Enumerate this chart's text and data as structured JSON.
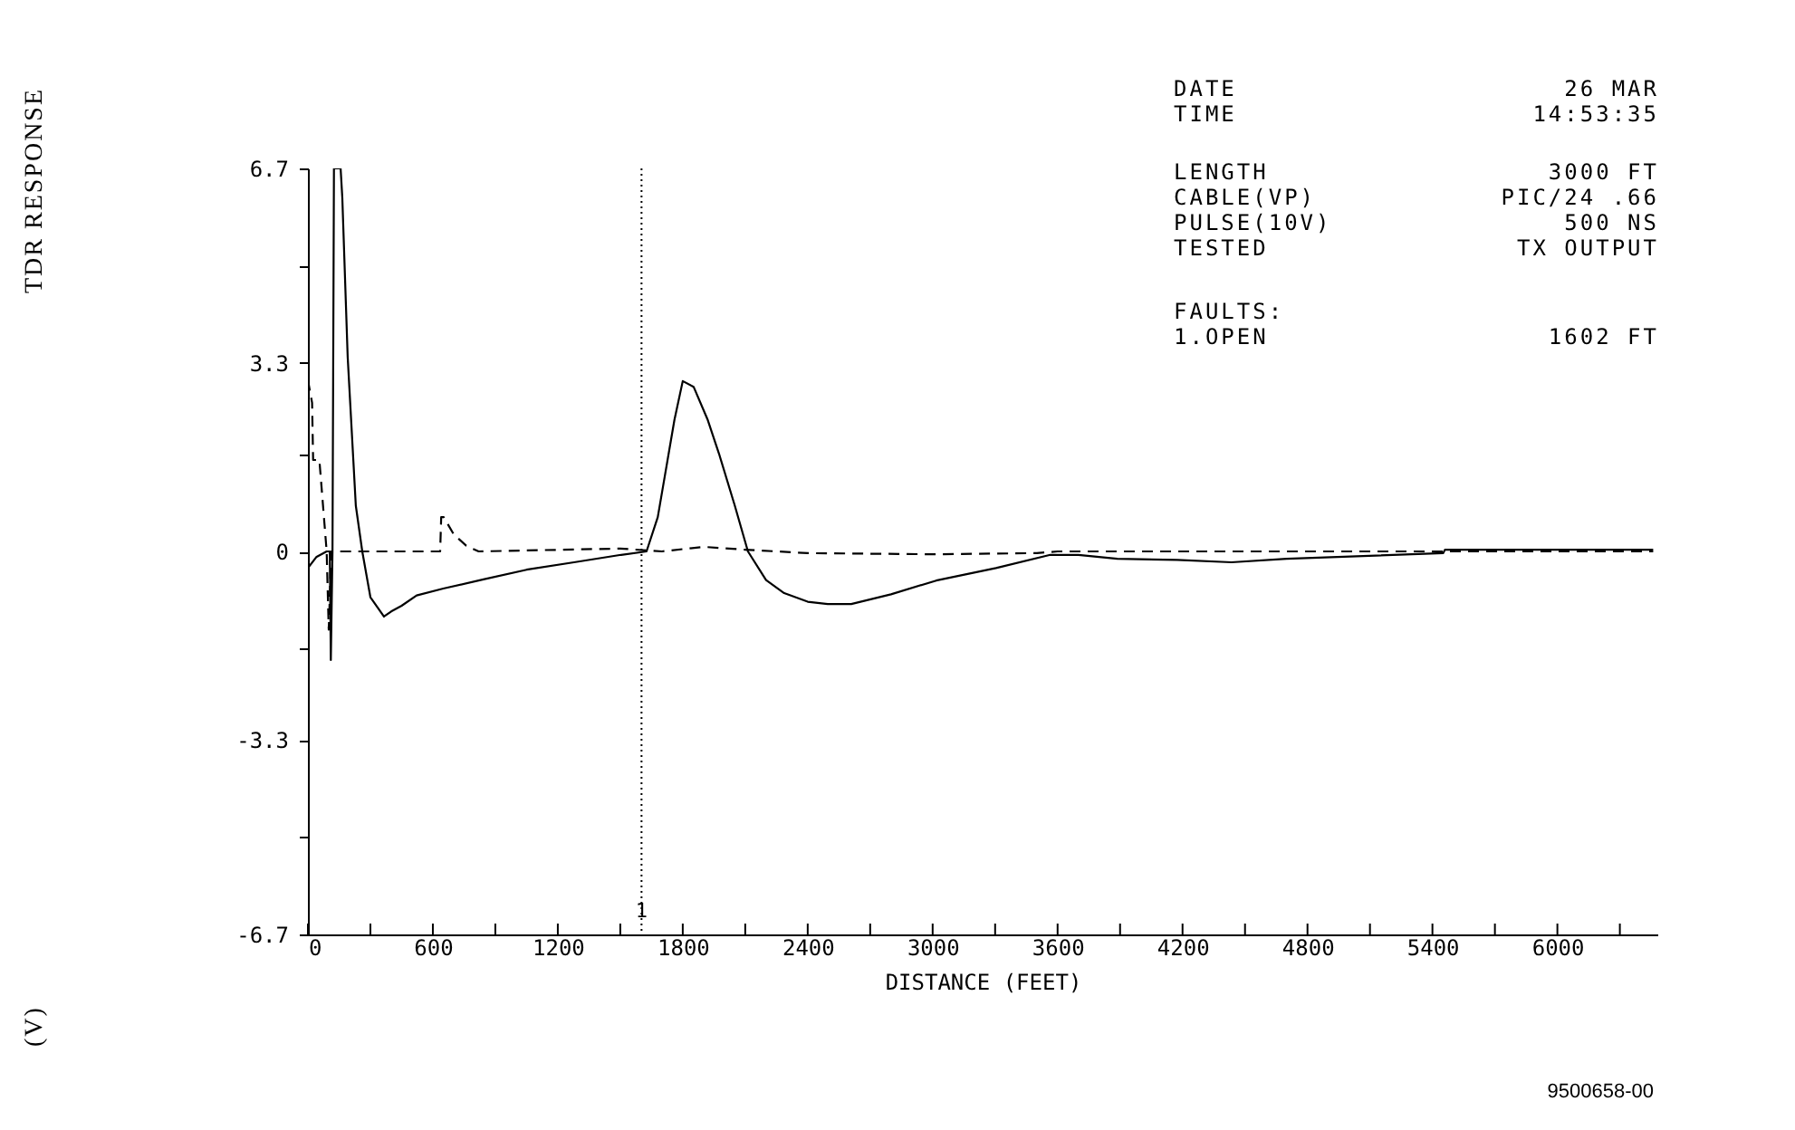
{
  "chart_data": {
    "type": "line",
    "xlabel": "DISTANCE (FEET)",
    "xlim": [
      0,
      6480
    ],
    "ylim": [
      -6.7,
      6.7
    ],
    "xticks": [
      0,
      {
        "value": 300,
        "label": null
      },
      600,
      {
        "value": 900,
        "label": null
      },
      1200,
      {
        "value": 1500,
        "label": null
      },
      1800,
      {
        "value": 2100,
        "label": null
      },
      2400,
      {
        "value": 2700,
        "label": null
      },
      3000,
      {
        "value": 3300,
        "label": null
      },
      3600,
      {
        "value": 3900,
        "label": null
      },
      4200,
      {
        "value": 4500,
        "label": null
      },
      4800,
      {
        "value": 5100,
        "label": null
      },
      5400,
      {
        "value": 5700,
        "label": null
      },
      6000,
      {
        "value": 6300,
        "label": null
      }
    ],
    "yticks": [
      -6.7,
      {
        "value": -5,
        "label": null
      },
      -3.3,
      {
        "value": -1.7,
        "label": null
      },
      0,
      {
        "value": 1.7,
        "label": null
      },
      3.3,
      {
        "value": 5,
        "label": null
      },
      6.7
    ],
    "grid": false,
    "series": [
      {
        "color": "#000000",
        "line_style": "solid",
        "x": [
          0,
          40,
          90,
          105,
          110,
          118,
          125,
          157,
          165,
          191,
          230,
          261,
          300,
          365,
          400,
          450,
          522,
          650,
          843,
          1050,
          1278,
          1504,
          1626,
          1680,
          1713,
          1760,
          1800,
          1852,
          1920,
          1974,
          2050,
          2113,
          2200,
          2287,
          2400,
          2496,
          2609,
          2800,
          3017,
          3304,
          3565,
          3700,
          3887,
          4174,
          4435,
          4700,
          5452,
          5460,
          6460
        ],
        "values": [
          -0.29,
          -0.1,
          0,
          0,
          -1.9,
          0,
          6.7,
          6.7,
          6.2,
          3.4,
          0.8,
          0,
          -0.8,
          -1.14,
          -1.05,
          -0.95,
          -0.77,
          -0.65,
          -0.49,
          -0.32,
          -0.19,
          -0.06,
          0,
          0.6,
          1.3,
          2.3,
          2.98,
          2.88,
          2.3,
          1.71,
          0.8,
          0,
          -0.5,
          -0.73,
          -0.88,
          -0.92,
          -0.92,
          -0.75,
          -0.51,
          -0.29,
          -0.06,
          -0.06,
          -0.13,
          -0.15,
          -0.19,
          -0.13,
          -0.03,
          0.03,
          0.03
        ]
      },
      {
        "color": "#000000",
        "line_style": "dashed",
        "x": [
          0,
          20,
          25,
          55,
          90,
          100,
          112,
          600,
          635,
          640,
          652,
          700,
          760,
          820,
          1500,
          1700,
          1900,
          2100,
          2400,
          3000,
          3500,
          3600,
          6460
        ],
        "values": [
          3.0,
          2.6,
          1.6,
          1.6,
          0,
          -1.37,
          0,
          0,
          0,
          0.6,
          0.6,
          0.3,
          0.1,
          0,
          0.05,
          0,
          0.08,
          0.03,
          -0.03,
          -0.05,
          -0.03,
          0,
          0
        ]
      }
    ],
    "ref_lines": [
      {
        "axis": "x",
        "value": 1602,
        "line_style": "dotted",
        "color": "#000000"
      }
    ],
    "annotations": [
      "DATE",
      "26 MAR",
      "TIME",
      "14:53:35",
      "LENGTH",
      "3000 FT",
      "CABLE(VP)",
      "PIC/24 .66",
      "PULSE(10V)",
      "500 NS",
      "TESTED",
      "TX OUTPUT",
      "FAULTS:",
      "1.OPEN",
      "1602 FT",
      "TDR RESPONSE",
      "(V)",
      "9500658-00",
      {
        "text": "1",
        "x": 1602,
        "y": -6.3
      }
    ]
  }
}
